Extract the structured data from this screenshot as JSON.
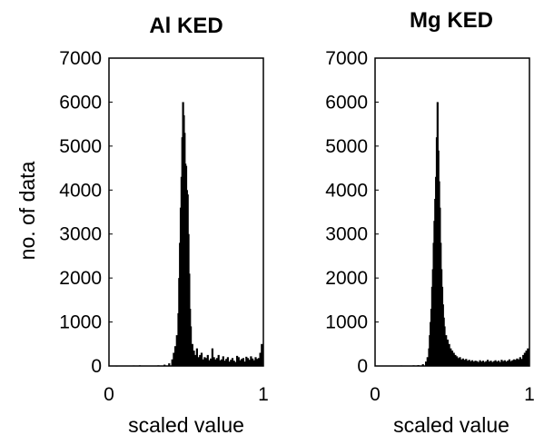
{
  "chart_data": [
    {
      "type": "bar",
      "title": "Al KED",
      "xlabel": "scaled value",
      "ylabel": "no. of data",
      "xlim": [
        0,
        1
      ],
      "ylim": [
        0,
        7000
      ],
      "xticks": [
        "0",
        "1"
      ],
      "yticks": [
        "0",
        "1000",
        "2000",
        "3000",
        "4000",
        "5000",
        "6000",
        "7000"
      ],
      "bar_color": "#000000",
      "bins": [
        [
          0.01,
          10
        ],
        [
          0.05,
          5
        ],
        [
          0.08,
          8
        ],
        [
          0.12,
          10
        ],
        [
          0.16,
          12
        ],
        [
          0.2,
          15
        ],
        [
          0.24,
          8
        ],
        [
          0.28,
          10
        ],
        [
          0.32,
          15
        ],
        [
          0.36,
          30
        ],
        [
          0.39,
          60
        ],
        [
          0.41,
          150
        ],
        [
          0.42,
          300
        ],
        [
          0.43,
          450
        ],
        [
          0.44,
          700
        ],
        [
          0.45,
          1200
        ],
        [
          0.455,
          2000
        ],
        [
          0.46,
          2800
        ],
        [
          0.465,
          3600
        ],
        [
          0.47,
          4300
        ],
        [
          0.475,
          5200
        ],
        [
          0.48,
          6000
        ],
        [
          0.485,
          5700
        ],
        [
          0.49,
          5300
        ],
        [
          0.495,
          4600
        ],
        [
          0.5,
          4550
        ],
        [
          0.505,
          4000
        ],
        [
          0.51,
          3900
        ],
        [
          0.515,
          3000
        ],
        [
          0.52,
          2100
        ],
        [
          0.525,
          1300
        ],
        [
          0.53,
          900
        ],
        [
          0.54,
          500
        ],
        [
          0.55,
          350
        ],
        [
          0.56,
          250
        ],
        [
          0.57,
          400
        ],
        [
          0.58,
          200
        ],
        [
          0.59,
          250
        ],
        [
          0.6,
          300
        ],
        [
          0.61,
          150
        ],
        [
          0.62,
          200
        ],
        [
          0.63,
          180
        ],
        [
          0.64,
          250
        ],
        [
          0.65,
          130
        ],
        [
          0.66,
          170
        ],
        [
          0.67,
          400
        ],
        [
          0.68,
          200
        ],
        [
          0.69,
          150
        ],
        [
          0.7,
          180
        ],
        [
          0.71,
          250
        ],
        [
          0.72,
          130
        ],
        [
          0.73,
          150
        ],
        [
          0.74,
          220
        ],
        [
          0.75,
          120
        ],
        [
          0.76,
          160
        ],
        [
          0.77,
          200
        ],
        [
          0.78,
          100
        ],
        [
          0.79,
          140
        ],
        [
          0.8,
          180
        ],
        [
          0.81,
          120
        ],
        [
          0.82,
          90
        ],
        [
          0.83,
          230
        ],
        [
          0.84,
          200
        ],
        [
          0.85,
          130
        ],
        [
          0.86,
          160
        ],
        [
          0.87,
          180
        ],
        [
          0.88,
          100
        ],
        [
          0.89,
          210
        ],
        [
          0.9,
          180
        ],
        [
          0.91,
          140
        ],
        [
          0.92,
          220
        ],
        [
          0.93,
          170
        ],
        [
          0.94,
          130
        ],
        [
          0.95,
          200
        ],
        [
          0.96,
          160
        ],
        [
          0.97,
          180
        ],
        [
          0.98,
          300
        ],
        [
          0.99,
          500
        ]
      ]
    },
    {
      "type": "bar",
      "title": "Mg KED",
      "xlabel": "scaled value",
      "ylabel": "",
      "xlim": [
        0,
        1
      ],
      "ylim": [
        0,
        7000
      ],
      "xticks": [
        "0",
        "1"
      ],
      "yticks": [
        "0",
        "1000",
        "2000",
        "3000",
        "4000",
        "5000",
        "6000",
        "7000"
      ],
      "bar_color": "#000000",
      "bins": [
        [
          0.01,
          8
        ],
        [
          0.05,
          10
        ],
        [
          0.09,
          8
        ],
        [
          0.13,
          10
        ],
        [
          0.17,
          12
        ],
        [
          0.21,
          10
        ],
        [
          0.25,
          15
        ],
        [
          0.28,
          20
        ],
        [
          0.31,
          40
        ],
        [
          0.33,
          100
        ],
        [
          0.34,
          200
        ],
        [
          0.35,
          400
        ],
        [
          0.355,
          700
        ],
        [
          0.36,
          1000
        ],
        [
          0.365,
          1300
        ],
        [
          0.37,
          1800
        ],
        [
          0.375,
          2200
        ],
        [
          0.38,
          2800
        ],
        [
          0.385,
          3300
        ],
        [
          0.39,
          3800
        ],
        [
          0.395,
          4300
        ],
        [
          0.4,
          5200
        ],
        [
          0.405,
          6000
        ],
        [
          0.41,
          4900
        ],
        [
          0.415,
          4200
        ],
        [
          0.42,
          3600
        ],
        [
          0.425,
          2800
        ],
        [
          0.43,
          2200
        ],
        [
          0.435,
          1800
        ],
        [
          0.44,
          1400
        ],
        [
          0.445,
          1100
        ],
        [
          0.45,
          900
        ],
        [
          0.46,
          700
        ],
        [
          0.47,
          600
        ],
        [
          0.48,
          500
        ],
        [
          0.49,
          400
        ],
        [
          0.5,
          350
        ],
        [
          0.51,
          300
        ],
        [
          0.52,
          250
        ],
        [
          0.53,
          220
        ],
        [
          0.54,
          180
        ],
        [
          0.55,
          200
        ],
        [
          0.56,
          150
        ],
        [
          0.57,
          170
        ],
        [
          0.58,
          140
        ],
        [
          0.59,
          160
        ],
        [
          0.6,
          120
        ],
        [
          0.61,
          140
        ],
        [
          0.62,
          110
        ],
        [
          0.63,
          130
        ],
        [
          0.64,
          100
        ],
        [
          0.65,
          120
        ],
        [
          0.66,
          110
        ],
        [
          0.67,
          90
        ],
        [
          0.68,
          130
        ],
        [
          0.69,
          100
        ],
        [
          0.7,
          120
        ],
        [
          0.71,
          90
        ],
        [
          0.72,
          110
        ],
        [
          0.73,
          140
        ],
        [
          0.74,
          100
        ],
        [
          0.75,
          120
        ],
        [
          0.76,
          90
        ],
        [
          0.77,
          110
        ],
        [
          0.78,
          130
        ],
        [
          0.79,
          100
        ],
        [
          0.8,
          120
        ],
        [
          0.81,
          90
        ],
        [
          0.82,
          140
        ],
        [
          0.83,
          110
        ],
        [
          0.84,
          130
        ],
        [
          0.85,
          100
        ],
        [
          0.86,
          120
        ],
        [
          0.87,
          150
        ],
        [
          0.88,
          110
        ],
        [
          0.89,
          130
        ],
        [
          0.9,
          150
        ],
        [
          0.91,
          140
        ],
        [
          0.92,
          170
        ],
        [
          0.93,
          150
        ],
        [
          0.94,
          200
        ],
        [
          0.95,
          160
        ],
        [
          0.96,
          250
        ],
        [
          0.97,
          300
        ],
        [
          0.98,
          350
        ],
        [
          0.99,
          400
        ]
      ]
    }
  ]
}
